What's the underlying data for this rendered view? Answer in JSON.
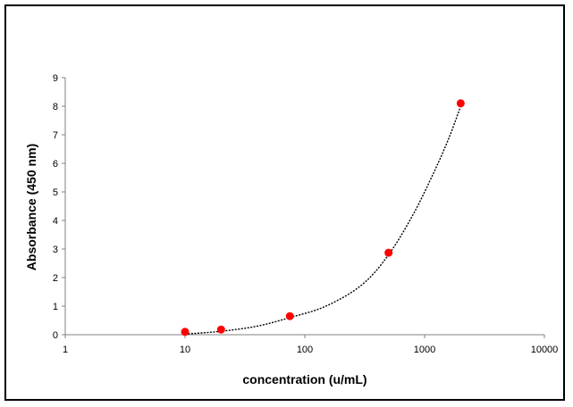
{
  "chart_data": {
    "type": "scatter",
    "title": "",
    "xlabel": "concentration (u/mL)",
    "ylabel": "Absorbance (450 nm)",
    "x_scale": "log",
    "xlim": [
      1,
      10000
    ],
    "ylim": [
      0,
      9
    ],
    "x_ticks": [
      "1",
      "10",
      "100",
      "1000",
      "10000"
    ],
    "y_ticks": [
      "0",
      "1",
      "2",
      "3",
      "4",
      "5",
      "6",
      "7",
      "8",
      "9"
    ],
    "grid": false,
    "legend": "none",
    "series": [
      {
        "marker_color": "#ff0000",
        "points": [
          {
            "x": 10,
            "y": 0.1
          },
          {
            "x": 20,
            "y": 0.18
          },
          {
            "x": 75,
            "y": 0.65
          },
          {
            "x": 500,
            "y": 2.87
          },
          {
            "x": 2000,
            "y": 8.1
          }
        ]
      }
    ],
    "fit_curve": {
      "style": "dotted",
      "color": "#000000",
      "points": [
        {
          "x": 10,
          "y": 0.02
        },
        {
          "x": 20,
          "y": 0.12
        },
        {
          "x": 40,
          "y": 0.3
        },
        {
          "x": 75,
          "y": 0.6
        },
        {
          "x": 150,
          "y": 1.0
        },
        {
          "x": 300,
          "y": 1.75
        },
        {
          "x": 500,
          "y": 2.8
        },
        {
          "x": 800,
          "y": 4.2
        },
        {
          "x": 1200,
          "y": 5.7
        },
        {
          "x": 1600,
          "y": 6.9
        },
        {
          "x": 2000,
          "y": 8.0
        }
      ]
    }
  }
}
